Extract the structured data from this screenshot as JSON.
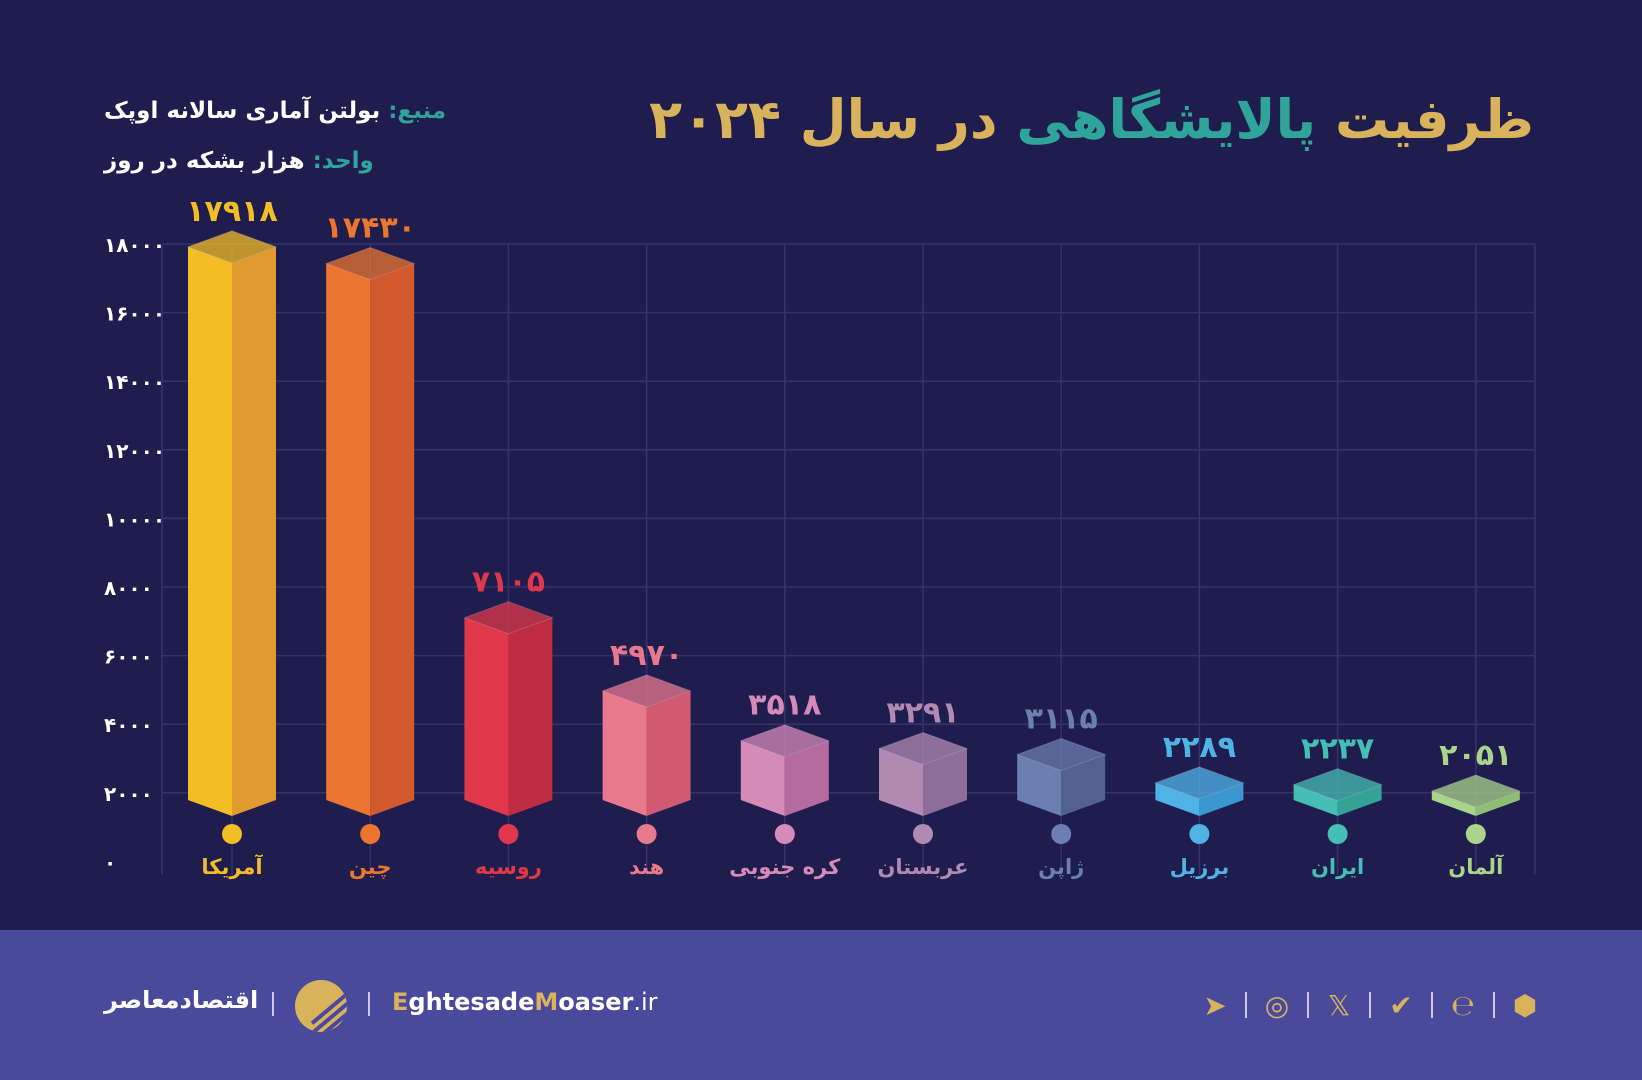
{
  "title": {
    "part1": "ظرفیت",
    "part2": "پالایشگاهی",
    "part3": "در سال ۲۰۲۴",
    "color_gold": "#d9b35b",
    "color_teal": "#2fa59a"
  },
  "source": {
    "label": "منبع:",
    "value": "بولتن آماری سالانه اوپک"
  },
  "unit": {
    "label": "واحد:",
    "value": "هزار بشکه در روز"
  },
  "chart_data": {
    "type": "bar",
    "categories": [
      "آمریکا",
      "چین",
      "روسیه",
      "هند",
      "کره جنوبی",
      "عربستان",
      "ژاپن",
      "برزیل",
      "ایران",
      "آلمان"
    ],
    "values": [
      17918,
      17430,
      7105,
      4970,
      3518,
      3291,
      3115,
      2289,
      2237,
      2051
    ],
    "value_labels": [
      "۱۷۹۱۸",
      "۱۷۴۳۰",
      "۷۱۰۵",
      "۴۹۷۰",
      "۳۵۱۸",
      "۳۲۹۱",
      "۳۱۱۵",
      "۲۲۸۹",
      "۲۲۳۷",
      "۲۰۵۱"
    ],
    "colors": [
      "#f2bd25",
      "#ec7530",
      "#e0384a",
      "#e97a8e",
      "#d68ab8",
      "#b18ab2",
      "#6b7fb0",
      "#4fb3e6",
      "#45bfb3",
      "#a9d48a"
    ],
    "side_colors": [
      "#e09a30",
      "#d2582e",
      "#bf2c42",
      "#cf5a72",
      "#b56aa0",
      "#8e6e98",
      "#52618f",
      "#3a98cf",
      "#33a398",
      "#8fbe72"
    ],
    "ylim": [
      0,
      18000
    ],
    "yticks": [
      0,
      2000,
      4000,
      6000,
      8000,
      10000,
      12000,
      14000,
      16000,
      18000
    ],
    "ytick_labels": [
      "۰",
      "۲۰۰۰",
      "۴۰۰۰",
      "۶۰۰۰",
      "۸۰۰۰",
      "۱۰۰۰۰",
      "۱۲۰۰۰",
      "۱۴۰۰۰",
      "۱۶۰۰۰",
      "۱۸۰۰۰"
    ],
    "grid": true,
    "style": "3d-isometric"
  },
  "footer": {
    "brand_fa": "اقتصادمعاصر",
    "site_e": "E",
    "site_1": "ghtesade",
    "site_m": "M",
    "site_2": "oaser",
    "site_tld": ".ir",
    "social_icons": [
      "telegram-icon",
      "instagram-icon",
      "x-icon",
      "check-shield-icon",
      "e-icon",
      "hexagon-icon"
    ]
  }
}
